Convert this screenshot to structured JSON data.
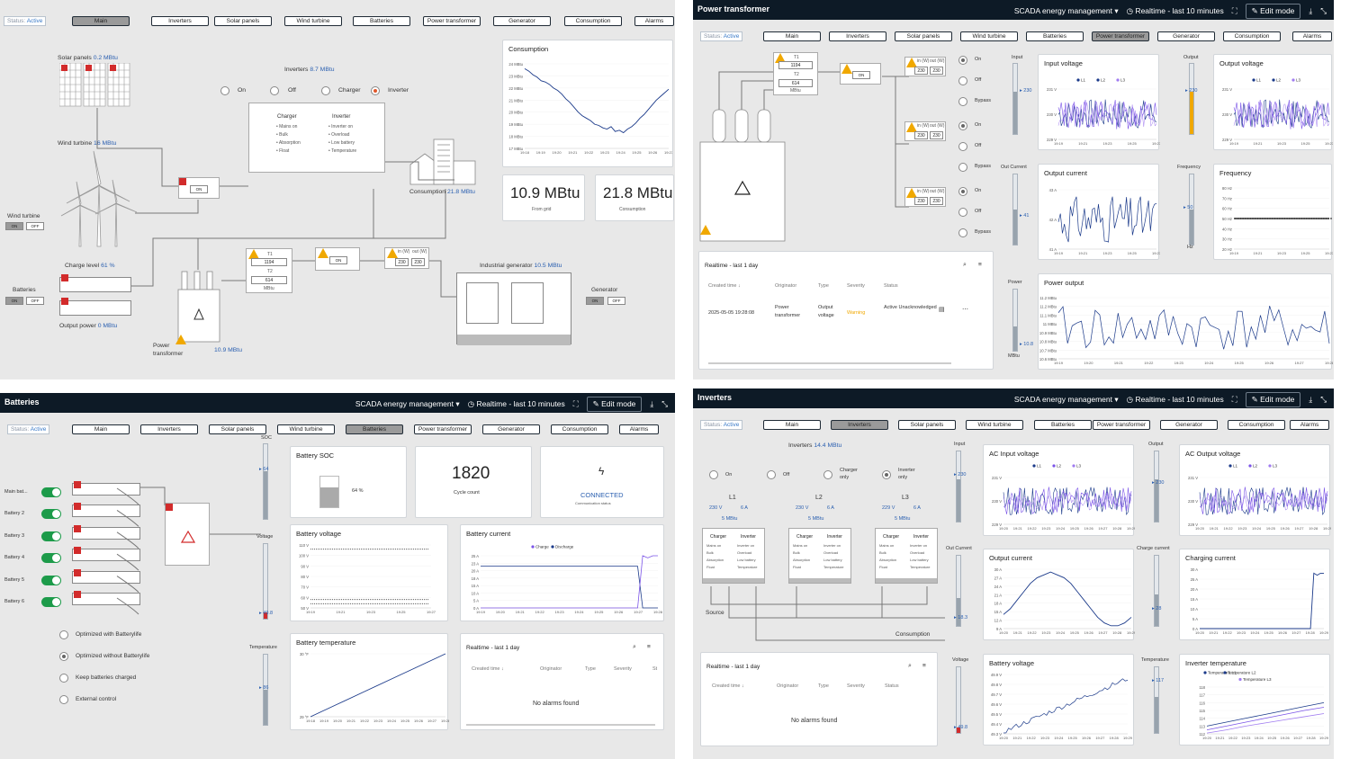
{
  "colors": {
    "titlebar": "#0d1a26",
    "accent": "#2a5fb0",
    "series1": "#1b3a8a",
    "series2": "#7b54e8",
    "alarm": "#d22b2b",
    "warn": "#f0a800",
    "toggle": "#1d9b4a"
  },
  "nav_labels": [
    "Main",
    "Inverters",
    "Solar panels",
    "Wind turbine",
    "Batteries",
    "Power transformer",
    "Generator",
    "Consumption",
    "Alarms"
  ],
  "status": {
    "label": "Status:",
    "value": "Active"
  },
  "titlebar": {
    "app": "SCADA energy management",
    "range": "Realtime - last 10 minutes",
    "edit": "Edit mode"
  },
  "main": {
    "solar": "Solar panels",
    "solar_val": "0.2 MBtu",
    "wind": "Wind turbine",
    "wind_val": "16 MBtu",
    "inverters": "Inverters",
    "inverters_val": "8.7 MBtu",
    "modes": [
      "On",
      "Off",
      "Charger",
      "Inverter"
    ],
    "charger": "Charger",
    "inverter": "Inverter",
    "charger_items": [
      "Mains on",
      "Bulk",
      "Absorption",
      "Float"
    ],
    "inverter_items": [
      "Inverter on",
      "Overload",
      "Low battery",
      "Temperature"
    ],
    "wind_sw": "Wind turbine",
    "on": "ON",
    "off": "OFF",
    "charge_level": "Charge level",
    "charge_val": "61 %",
    "batteries": "Batteries",
    "output_power": "Output power",
    "output_val": "0 MBtu",
    "consumption": "Consumption",
    "consumption_val": "21.8 MBtu",
    "t1": "T1",
    "t1_val": "1194",
    "t2": "T2",
    "t2_val": "614",
    "mbtu": "MBtu",
    "in_v": "in (W)",
    "out_v": "out (W)",
    "in_val": "230",
    "out_val": "230",
    "transformer": "Power transformer",
    "transformer_val": "10.9 MBtu",
    "generator_title": "Industrial generator",
    "generator_val": "10.5 MBtu",
    "generator_sw": "Generator",
    "chart_title": "Consumption",
    "kpi1": "10.9 MBtu",
    "kpi1_lbl": "From grid",
    "kpi2": "21.8 MBtu",
    "kpi2_lbl": "Consumption"
  },
  "transformer": {
    "title": "Power transformer",
    "modes": [
      "On",
      "Off",
      "Bypass"
    ],
    "input": "Input",
    "output": "Output",
    "in_gauge": "230",
    "out_gauge": "230",
    "out_current": "Out Current",
    "out_cur_val": "41",
    "frequency": "Frequency",
    "freq_val": "50",
    "hz": "Hz",
    "power": "Power",
    "power_val": "10.8",
    "power_unit": "MBtu",
    "c1": "Input voltage",
    "c2": "Output voltage",
    "c3": "Output current",
    "c4": "Frequency",
    "c5": "Power output",
    "legend": [
      "L1",
      "L2",
      "L3"
    ],
    "alarms_title": "Realtime - last 1 day",
    "cols": [
      "Created time",
      "Originator",
      "Type",
      "Severity",
      "Status"
    ],
    "row": {
      "time": "2025-05-05 19:28:08",
      "orig": "Power transformer",
      "type": "Output voltage",
      "sev": "Warning",
      "status": "Active Unacknowledged"
    }
  },
  "batteries": {
    "title": "Batteries",
    "names": [
      "Main bat...",
      "Battery 2",
      "Battery 3",
      "Battery 4",
      "Battery 5",
      "Battery 6"
    ],
    "soc": "SOC",
    "soc_val": "64",
    "voltage": "Voltage",
    "volt_val": "49.8",
    "temperature": "Temperature",
    "temp_val": "86",
    "c_soc": "Battery SOC",
    "soc_pct": "64 %",
    "cycle": "1820",
    "cycle_lbl": "Cycle count",
    "conn": "CONNECTED",
    "conn_lbl": "Communication status",
    "c_volt": "Battery voltage",
    "c_cur": "Battery current",
    "c_temp": "Battery temperature",
    "cur_legend": [
      "Charge",
      "Discharge"
    ],
    "opts": [
      "Optimized with Batterylife",
      "Optimized without Batterylife",
      "Keep batteries charged",
      "External control"
    ],
    "alarms_title": "Realtime - last 1 day",
    "cols": [
      "Created time",
      "Originator",
      "Type",
      "Severity",
      "St"
    ],
    "no_alarms": "No alarms found"
  },
  "inverters": {
    "title": "Inverters",
    "inv": "Inverters",
    "inv_val": "14.4 MBtu",
    "modes": [
      "On",
      "Off",
      "Charger only",
      "Inverter only"
    ],
    "phases": [
      {
        "n": "L1",
        "v": "230 V",
        "a": "6 A",
        "p": "5 MBtu"
      },
      {
        "n": "L2",
        "v": "230 V",
        "a": "6 A",
        "p": "5 MBtu"
      },
      {
        "n": "L3",
        "v": "229 V",
        "a": "6 A",
        "p": "5 MBtu"
      }
    ],
    "source": "Source",
    "consumption": "Consumption",
    "input": "Input",
    "in_val": "230",
    "output": "Output",
    "out_val": "230",
    "out_current": "Out Current",
    "oc_val": "18.3",
    "charge_current": "Charge current",
    "cc_val": "28",
    "voltage": "Voltage",
    "v_val": "49.8",
    "temperature": "Temperature",
    "t_val": "117",
    "c1": "AC Input voltage",
    "c2": "AC Output voltage",
    "c3": "Output current",
    "c4": "Charging current",
    "c5": "Battery voltage",
    "c6": "Inverter temperature",
    "temp_legend": [
      "Temperature L1",
      "Temperature L2",
      "Temperature L3"
    ],
    "alarms_title": "Realtime - last 1 day",
    "cols": [
      "Created time",
      "Originator",
      "Type",
      "Severity",
      "Status"
    ],
    "no_alarms": "No alarms found"
  }
}
